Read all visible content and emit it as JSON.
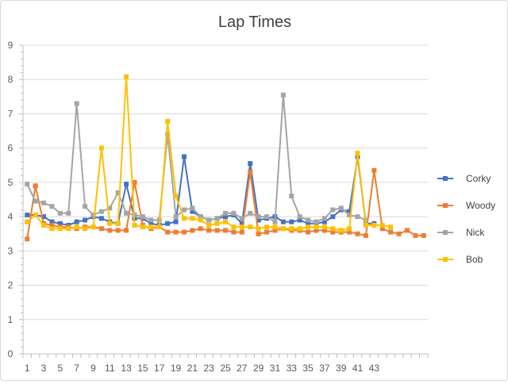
{
  "chart_data": {
    "type": "line",
    "title": "Lap Times",
    "xlabel": "",
    "ylabel": "",
    "ylim": [
      0,
      9
    ],
    "yticks": [
      0,
      1,
      2,
      3,
      4,
      5,
      6,
      7,
      8,
      9
    ],
    "x_tick_labels": [
      "1",
      "3",
      "5",
      "7",
      "9",
      "11",
      "13",
      "15",
      "17",
      "19",
      "21",
      "23",
      "25",
      "27",
      "29",
      "31",
      "33",
      "35",
      "37",
      "39",
      "41",
      "43"
    ],
    "grid": "horizontal",
    "legend_position": "right",
    "series": [
      {
        "name": "Corky",
        "color": "#4472C4",
        "values": [
          4.05,
          4.05,
          4.0,
          3.85,
          3.8,
          3.75,
          3.85,
          3.9,
          4.0,
          3.95,
          3.85,
          3.8,
          4.95,
          3.95,
          3.95,
          3.8,
          3.75,
          3.8,
          3.85,
          5.75,
          4.15,
          4.0,
          3.9,
          3.95,
          4.0,
          4.05,
          3.8,
          5.55,
          3.9,
          3.95,
          4.0,
          3.85,
          3.85,
          3.9,
          3.8,
          3.8,
          3.85,
          4.0,
          4.2,
          4.15,
          5.75,
          3.8,
          3.8
        ]
      },
      {
        "name": "Woody",
        "color": "#ED7D31",
        "values": [
          3.35,
          4.9,
          3.8,
          3.75,
          3.7,
          3.7,
          3.65,
          3.7,
          3.7,
          3.65,
          3.6,
          3.6,
          3.6,
          5.0,
          3.75,
          3.65,
          3.7,
          3.55,
          3.55,
          3.55,
          3.6,
          3.65,
          3.6,
          3.6,
          3.6,
          3.55,
          3.55,
          5.3,
          3.5,
          3.55,
          3.6,
          3.65,
          3.6,
          3.6,
          3.55,
          3.6,
          3.6,
          3.55,
          3.55,
          3.55,
          3.5,
          3.45,
          5.35,
          3.65,
          3.55,
          3.5,
          3.6,
          3.45,
          3.45
        ]
      },
      {
        "name": "Nick",
        "color": "#A5A5A5",
        "values": [
          4.95,
          4.45,
          4.4,
          4.3,
          4.1,
          4.1,
          7.3,
          4.3,
          4.05,
          4.15,
          4.25,
          4.7,
          4.1,
          4.05,
          4.0,
          3.9,
          3.9,
          6.4,
          4.0,
          4.2,
          4.25,
          4.0,
          3.9,
          3.95,
          4.1,
          4.1,
          3.95,
          4.1,
          4.0,
          4.0,
          3.85,
          7.55,
          4.6,
          4.0,
          3.9,
          3.85,
          3.95,
          4.2,
          4.25,
          4.05,
          4.0,
          3.9
        ]
      },
      {
        "name": "Bob",
        "color": "#FFC000",
        "values": [
          3.85,
          4.05,
          3.75,
          3.65,
          3.65,
          3.65,
          3.7,
          3.65,
          3.7,
          6.0,
          3.8,
          3.8,
          8.08,
          3.75,
          3.7,
          3.7,
          3.7,
          6.78,
          4.6,
          3.95,
          3.95,
          3.9,
          3.75,
          3.8,
          3.85,
          3.7,
          3.7,
          3.7,
          3.65,
          3.7,
          3.7,
          3.65,
          3.65,
          3.65,
          3.7,
          3.7,
          3.7,
          3.65,
          3.6,
          3.65,
          5.85,
          3.75,
          3.75,
          3.75,
          3.7
        ]
      }
    ]
  }
}
